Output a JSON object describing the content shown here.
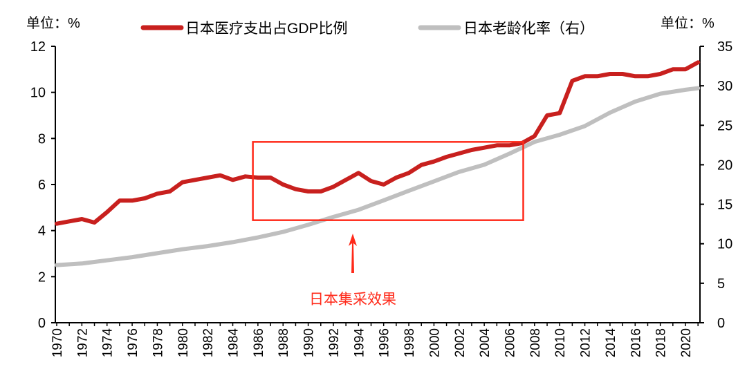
{
  "chart_data": {
    "type": "line",
    "left_unit_label": "单位：%",
    "right_unit_label": "单位：%",
    "ylim_left": [
      0,
      12
    ],
    "yticks_left": [
      0,
      2,
      4,
      6,
      8,
      10,
      12
    ],
    "ylim_right": [
      0,
      35
    ],
    "yticks_right": [
      0,
      5,
      10,
      15,
      20,
      25,
      30,
      35
    ],
    "xlim": [
      1970,
      2021
    ],
    "xticks": [
      1970,
      1972,
      1974,
      1976,
      1978,
      1980,
      1982,
      1984,
      1986,
      1988,
      1990,
      1992,
      1994,
      1996,
      1998,
      2000,
      2002,
      2004,
      2006,
      2008,
      2010,
      2012,
      2014,
      2016,
      2018,
      2020
    ],
    "grid": false,
    "legend_position": "top",
    "series": [
      {
        "name": "日本医疗支出占GDP比例",
        "axis": "left",
        "color": "#c8201e",
        "x": [
          1970,
          1971,
          1972,
          1973,
          1974,
          1975,
          1976,
          1977,
          1978,
          1979,
          1980,
          1981,
          1982,
          1983,
          1984,
          1985,
          1986,
          1987,
          1988,
          1989,
          1990,
          1991,
          1992,
          1993,
          1994,
          1995,
          1996,
          1997,
          1998,
          1999,
          2000,
          2001,
          2002,
          2003,
          2004,
          2005,
          2006,
          2007,
          2008,
          2009,
          2010,
          2011,
          2012,
          2013,
          2014,
          2015,
          2016,
          2017,
          2018,
          2019,
          2020,
          2021
        ],
        "values": [
          4.3,
          4.4,
          4.5,
          4.35,
          4.8,
          5.3,
          5.3,
          5.4,
          5.6,
          5.7,
          6.1,
          6.2,
          6.3,
          6.4,
          6.2,
          6.35,
          6.3,
          6.3,
          6.0,
          5.8,
          5.7,
          5.7,
          5.9,
          6.2,
          6.5,
          6.15,
          6.0,
          6.3,
          6.5,
          6.85,
          7.0,
          7.2,
          7.35,
          7.5,
          7.6,
          7.7,
          7.7,
          7.8,
          8.1,
          9.0,
          9.1,
          10.5,
          10.7,
          10.7,
          10.8,
          10.8,
          10.7,
          10.7,
          10.8,
          11.0,
          11.0,
          11.3
        ]
      },
      {
        "name": "日本老龄化率（右）",
        "axis": "right",
        "color": "#bfbfbf",
        "x": [
          1970,
          1972,
          1974,
          1976,
          1978,
          1980,
          1982,
          1984,
          1986,
          1988,
          1990,
          1992,
          1994,
          1996,
          1998,
          2000,
          2002,
          2004,
          2006,
          2008,
          2010,
          2012,
          2014,
          2016,
          2018,
          2020,
          2021
        ],
        "values": [
          7.3,
          7.5,
          7.9,
          8.3,
          8.8,
          9.3,
          9.7,
          10.2,
          10.8,
          11.5,
          12.4,
          13.4,
          14.3,
          15.5,
          16.7,
          17.9,
          19.1,
          20.0,
          21.4,
          22.9,
          23.8,
          24.9,
          26.6,
          28.0,
          29.0,
          29.5,
          29.7
        ]
      }
    ],
    "annotation": {
      "text": "日本集采效果",
      "color": "#ff2a1a",
      "box_x_range": [
        1985.6,
        2007.1
      ],
      "box_y_range_left": [
        4.45,
        7.85
      ]
    }
  }
}
